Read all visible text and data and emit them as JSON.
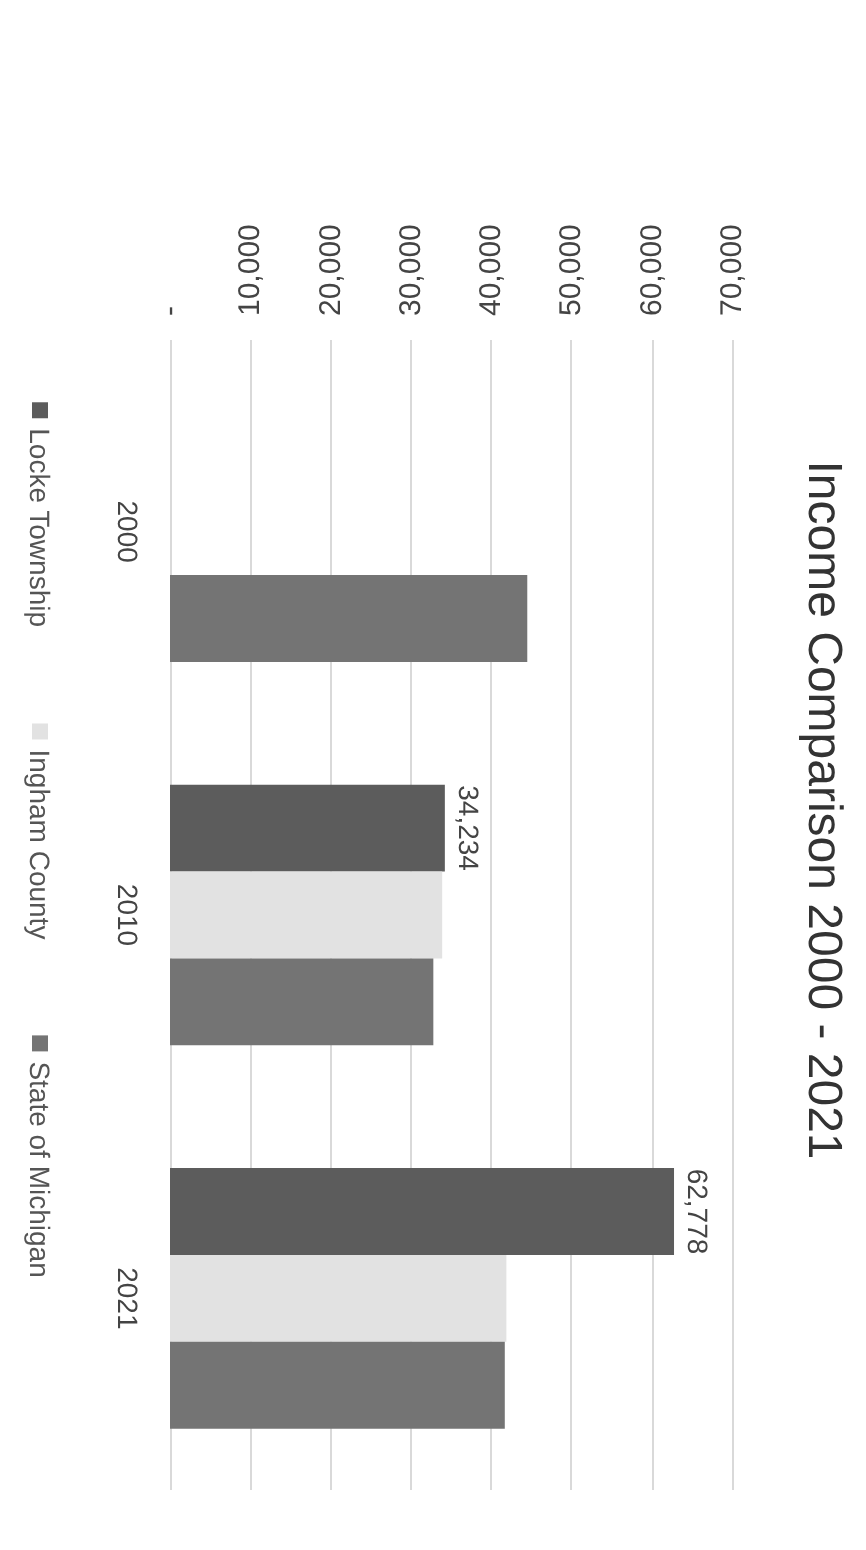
{
  "chart_data": {
    "type": "bar",
    "title": "Income Comparison 2000 - 2021",
    "categories": [
      "2000",
      "2010",
      "2021"
    ],
    "series": [
      {
        "name": "Locke Township",
        "color": "#5c5c5c",
        "values": [
          null,
          34234,
          62778
        ],
        "value_labels": [
          null,
          "34,234",
          "62,778"
        ]
      },
      {
        "name": "Ingham County",
        "color": "#e2e2e2",
        "values": [
          null,
          33900,
          41900
        ]
      },
      {
        "name": "State of Michigan",
        "color": "#747474",
        "values": [
          44500,
          32800,
          41700
        ]
      }
    ],
    "orientation": "horizontal",
    "xlim": [
      0,
      70000
    ],
    "xticks": [
      {
        "value": 0,
        "label": "-"
      },
      {
        "value": 10000,
        "label": "10,000"
      },
      {
        "value": 20000,
        "label": "20,000"
      },
      {
        "value": 30000,
        "label": "30,000"
      },
      {
        "value": 40000,
        "label": "40,000"
      },
      {
        "value": 50000,
        "label": "50,000"
      },
      {
        "value": 60000,
        "label": "60,000"
      },
      {
        "value": 70000,
        "label": "70,000"
      }
    ],
    "grid": true,
    "legend": "left"
  }
}
